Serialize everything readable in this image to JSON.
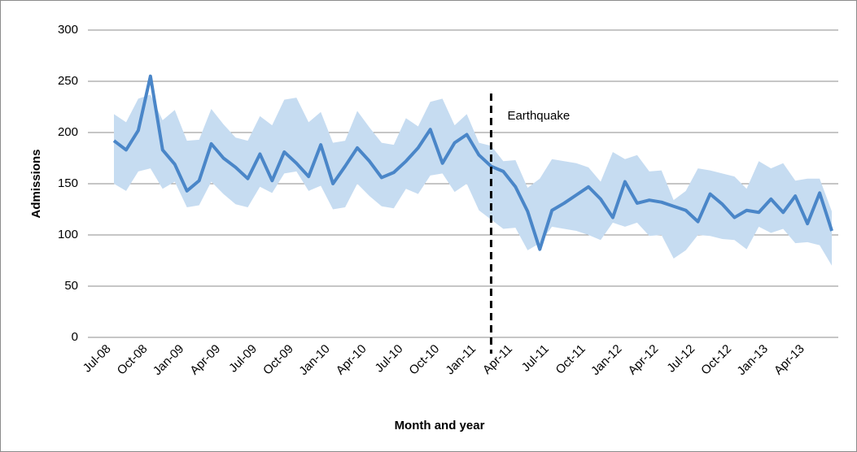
{
  "chart_data": {
    "type": "band-line",
    "y_label": "Admissions",
    "x_label": "Month and year",
    "annotation": "Earthquake",
    "categories": [
      "Jul-08",
      null,
      null,
      "Oct-08",
      null,
      null,
      "Jan-09",
      null,
      null,
      "Apr-09",
      null,
      null,
      "Jul-09",
      null,
      null,
      "Oct-09",
      null,
      null,
      "Jan-10",
      null,
      null,
      "Apr-10",
      null,
      null,
      "Jul-10",
      null,
      null,
      "Oct-10",
      null,
      null,
      "Jan-11",
      null,
      null,
      "Apr-11",
      null,
      null,
      "Jul-11",
      null,
      null,
      "Oct-11",
      null,
      null,
      "Jan-12",
      null,
      null,
      "Apr-12",
      null,
      null,
      "Jul-12",
      null,
      null,
      "Oct-12",
      null,
      null,
      "Jan-13",
      null,
      null,
      "Apr-13",
      null,
      null
    ],
    "values": [
      192,
      183,
      202,
      255,
      183,
      169,
      143,
      153,
      189,
      175,
      166,
      155,
      179,
      153,
      181,
      170,
      157,
      188,
      150,
      167,
      185,
      172,
      156,
      161,
      172,
      185,
      203,
      170,
      190,
      198,
      178,
      167,
      162,
      147,
      123,
      86,
      124,
      131,
      139,
      147,
      135,
      117,
      152,
      131,
      134,
      132,
      128,
      124,
      113,
      140,
      130,
      117,
      124,
      122,
      135,
      122,
      138,
      111,
      141,
      104
    ],
    "upper": [
      218,
      210,
      233,
      237,
      212,
      222,
      192,
      193,
      223,
      208,
      195,
      192,
      216,
      207,
      232,
      234,
      210,
      220,
      190,
      192,
      221,
      205,
      190,
      188,
      214,
      206,
      230,
      233,
      207,
      218,
      190,
      187,
      172,
      173,
      146,
      155,
      174,
      172,
      170,
      166,
      152,
      181,
      174,
      178,
      162,
      163,
      134,
      143,
      165,
      163,
      160,
      157,
      145,
      172,
      165,
      170,
      153,
      155,
      155,
      123
    ],
    "lower": [
      150,
      143,
      162,
      165,
      145,
      152,
      127,
      129,
      152,
      140,
      130,
      127,
      147,
      141,
      160,
      162,
      143,
      148,
      125,
      127,
      150,
      138,
      128,
      126,
      145,
      140,
      158,
      160,
      142,
      150,
      124,
      115,
      106,
      107,
      85,
      92,
      108,
      106,
      104,
      100,
      95,
      112,
      108,
      112,
      99,
      100,
      77,
      85,
      100,
      99,
      96,
      95,
      86,
      108,
      102,
      106,
      92,
      93,
      90,
      70
    ],
    "color": "#4a86c8",
    "band_color": "#c6dcf1",
    "ylim": [
      0,
      300
    ],
    "yticks": [
      0,
      50,
      100,
      150,
      200,
      250,
      300
    ],
    "grid": true
  }
}
